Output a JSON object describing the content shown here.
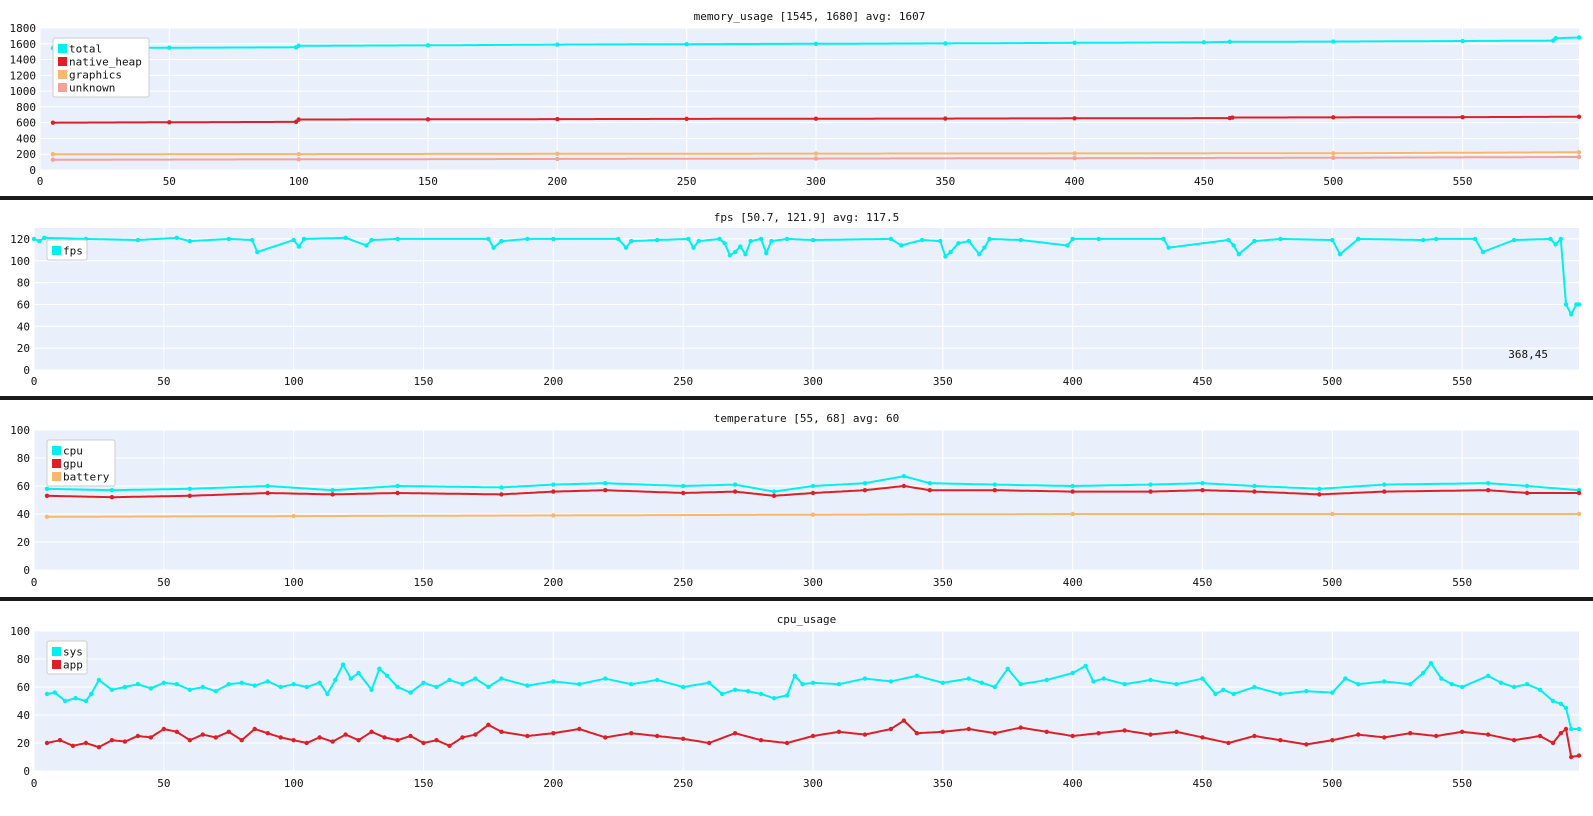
{
  "colors": {
    "background": "#ffffff",
    "plot_bg": "#eaf0fb",
    "grid": "#ffffff",
    "separator": "#1a1a1a",
    "axis_text": "#111111",
    "cyan": "#00f0f0",
    "red": "#dd1f26",
    "orange": "#f7b86e",
    "pink": "#f4a19a"
  },
  "charts": [
    {
      "title": "memory_usage [1545, 1680] avg: 1607",
      "annotation": ""
    },
    {
      "title": "fps [50.7, 121.9] avg: 117.5",
      "annotation": "368,45"
    },
    {
      "title": "temperature [55, 68] avg: 60",
      "annotation": ""
    },
    {
      "title": "cpu_usage",
      "annotation": ""
    }
  ],
  "chart_data": [
    {
      "type": "line",
      "title": "memory_usage [1545, 1680] avg: 1607",
      "xlim": [
        0,
        595
      ],
      "ylim": [
        0,
        1800
      ],
      "xticks": [
        0,
        50,
        100,
        150,
        200,
        250,
        300,
        350,
        400,
        450,
        500,
        550
      ],
      "yticks": [
        0,
        200,
        400,
        600,
        800,
        1000,
        1200,
        1400,
        1600,
        1800
      ],
      "grid": true,
      "legend": "top-left",
      "series": [
        {
          "name": "total",
          "color": "#00f0f0",
          "x": [
            5,
            50,
            99,
            100,
            150,
            200,
            250,
            300,
            350,
            400,
            450,
            460,
            500,
            550,
            585,
            586,
            595
          ],
          "y": [
            1545,
            1550,
            1555,
            1575,
            1580,
            1590,
            1595,
            1600,
            1605,
            1612,
            1618,
            1625,
            1628,
            1635,
            1640,
            1670,
            1680
          ]
        },
        {
          "name": "native_heap",
          "color": "#dd1f26",
          "x": [
            5,
            50,
            99,
            100,
            150,
            200,
            250,
            300,
            350,
            400,
            460,
            461,
            500,
            550,
            595
          ],
          "y": [
            600,
            605,
            610,
            640,
            642,
            645,
            648,
            650,
            652,
            655,
            658,
            665,
            667,
            670,
            675
          ]
        },
        {
          "name": "graphics",
          "color": "#f7b86e",
          "x": [
            5,
            100,
            200,
            300,
            400,
            500,
            595
          ],
          "y": [
            200,
            202,
            205,
            208,
            210,
            212,
            225
          ]
        },
        {
          "name": "unknown",
          "color": "#f4a19a",
          "x": [
            5,
            100,
            200,
            300,
            400,
            500,
            595
          ],
          "y": [
            130,
            135,
            140,
            145,
            150,
            155,
            165
          ]
        }
      ]
    },
    {
      "type": "line",
      "title": "fps [50.7, 121.9] avg: 117.5",
      "xlim": [
        0,
        595
      ],
      "ylim": [
        0,
        130
      ],
      "xticks": [
        0,
        50,
        100,
        150,
        200,
        250,
        300,
        350,
        400,
        450,
        500,
        550
      ],
      "yticks": [
        0,
        20,
        40,
        60,
        80,
        100,
        120
      ],
      "grid": true,
      "legend": "top-left",
      "series": [
        {
          "name": "fps",
          "color": "#00f0f0",
          "x": [
            0,
            2,
            4,
            20,
            40,
            55,
            60,
            75,
            84,
            86,
            100,
            102,
            104,
            120,
            128,
            130,
            140,
            175,
            177,
            180,
            190,
            200,
            225,
            228,
            230,
            240,
            252,
            254,
            256,
            264,
            266,
            268,
            270,
            272,
            274,
            276,
            280,
            282,
            284,
            290,
            300,
            330,
            334,
            342,
            349,
            351,
            353,
            356,
            360,
            364,
            366,
            368,
            380,
            398,
            400,
            410,
            435,
            437,
            460,
            462,
            464,
            470,
            480,
            500,
            503,
            510,
            535,
            540,
            555,
            558,
            570,
            584,
            586,
            588,
            590,
            592,
            594,
            595
          ],
          "y": [
            120,
            118,
            121,
            120,
            119,
            121,
            118,
            120,
            119,
            108,
            119,
            113,
            120,
            121,
            114,
            119,
            120,
            120,
            112,
            118,
            120,
            120,
            120,
            112,
            118,
            119,
            120,
            112,
            118,
            120,
            116,
            105,
            108,
            113,
            106,
            118,
            120,
            107,
            118,
            120,
            119,
            120,
            114,
            119,
            118,
            104,
            108,
            116,
            118,
            106,
            112,
            120,
            119,
            114,
            120,
            120,
            120,
            112,
            119,
            114,
            106,
            118,
            120,
            119,
            106,
            120,
            119,
            120,
            120,
            108,
            119,
            120,
            115,
            120,
            60,
            51,
            60,
            60
          ]
        }
      ]
    },
    {
      "type": "line",
      "title": "temperature [55, 68] avg: 60",
      "xlim": [
        0,
        595
      ],
      "ylim": [
        0,
        100
      ],
      "xticks": [
        0,
        50,
        100,
        150,
        200,
        250,
        300,
        350,
        400,
        450,
        500,
        550
      ],
      "yticks": [
        0,
        20,
        40,
        60,
        80,
        100
      ],
      "grid": true,
      "legend": "top-left",
      "series": [
        {
          "name": "cpu",
          "color": "#00f0f0",
          "x": [
            5,
            30,
            60,
            90,
            115,
            140,
            180,
            200,
            220,
            250,
            270,
            285,
            300,
            320,
            335,
            345,
            370,
            400,
            430,
            450,
            470,
            495,
            520,
            560,
            575,
            595
          ],
          "y": [
            58,
            57,
            58,
            60,
            57,
            60,
            59,
            61,
            62,
            60,
            61,
            56,
            60,
            62,
            67,
            62,
            61,
            60,
            61,
            62,
            60,
            58,
            61,
            62,
            60,
            57
          ]
        },
        {
          "name": "gpu",
          "color": "#dd1f26",
          "x": [
            5,
            30,
            60,
            90,
            115,
            140,
            180,
            200,
            220,
            250,
            270,
            285,
            300,
            320,
            335,
            345,
            370,
            400,
            430,
            450,
            470,
            495,
            520,
            560,
            575,
            595
          ],
          "y": [
            53,
            52,
            53,
            55,
            54,
            55,
            54,
            56,
            57,
            55,
            56,
            53,
            55,
            57,
            60,
            57,
            57,
            56,
            56,
            57,
            56,
            54,
            56,
            57,
            55,
            55
          ]
        },
        {
          "name": "battery",
          "color": "#f7b86e",
          "x": [
            5,
            100,
            200,
            300,
            400,
            500,
            595
          ],
          "y": [
            38,
            38.5,
            39,
            39.5,
            40,
            40,
            40
          ]
        }
      ]
    },
    {
      "type": "line",
      "title": "cpu_usage",
      "xlim": [
        0,
        595
      ],
      "ylim": [
        0,
        100
      ],
      "xticks": [
        0,
        50,
        100,
        150,
        200,
        250,
        300,
        350,
        400,
        450,
        500,
        550
      ],
      "yticks": [
        0,
        20,
        40,
        60,
        80,
        100
      ],
      "grid": true,
      "legend": "top-left",
      "series": [
        {
          "name": "sys",
          "color": "#00f0f0",
          "x": [
            5,
            8,
            12,
            16,
            20,
            22,
            25,
            30,
            35,
            40,
            45,
            50,
            55,
            60,
            65,
            70,
            75,
            80,
            85,
            90,
            95,
            100,
            105,
            110,
            113,
            116,
            119,
            122,
            125,
            130,
            133,
            136,
            140,
            145,
            150,
            155,
            160,
            165,
            170,
            175,
            180,
            190,
            200,
            210,
            220,
            230,
            240,
            250,
            260,
            265,
            270,
            275,
            280,
            285,
            290,
            293,
            296,
            300,
            310,
            320,
            330,
            340,
            350,
            360,
            365,
            370,
            375,
            380,
            390,
            400,
            405,
            408,
            412,
            420,
            430,
            440,
            450,
            455,
            458,
            462,
            470,
            480,
            490,
            500,
            505,
            510,
            520,
            530,
            535,
            538,
            542,
            546,
            550,
            560,
            565,
            570,
            575,
            580,
            585,
            588,
            590,
            592,
            595
          ],
          "y": [
            55,
            56,
            50,
            52,
            50,
            55,
            65,
            58,
            60,
            62,
            59,
            63,
            62,
            58,
            60,
            57,
            62,
            63,
            61,
            64,
            60,
            62,
            60,
            63,
            55,
            65,
            76,
            66,
            70,
            58,
            73,
            68,
            60,
            56,
            63,
            60,
            65,
            62,
            66,
            60,
            66,
            61,
            64,
            62,
            66,
            62,
            65,
            60,
            63,
            55,
            58,
            57,
            55,
            52,
            54,
            68,
            62,
            63,
            62,
            66,
            64,
            68,
            63,
            66,
            63,
            60,
            73,
            62,
            65,
            70,
            75,
            64,
            66,
            62,
            65,
            62,
            66,
            55,
            58,
            55,
            60,
            55,
            57,
            56,
            66,
            62,
            64,
            62,
            70,
            77,
            66,
            62,
            60,
            68,
            63,
            60,
            62,
            58,
            50,
            48,
            45,
            30,
            30
          ]
        },
        {
          "name": "app",
          "color": "#dd1f26",
          "x": [
            5,
            10,
            15,
            20,
            25,
            30,
            35,
            40,
            45,
            50,
            55,
            60,
            65,
            70,
            75,
            80,
            85,
            90,
            95,
            100,
            105,
            110,
            115,
            120,
            125,
            130,
            135,
            140,
            145,
            150,
            155,
            160,
            165,
            170,
            175,
            180,
            190,
            200,
            210,
            220,
            230,
            240,
            250,
            260,
            270,
            280,
            290,
            300,
            310,
            320,
            330,
            335,
            340,
            350,
            360,
            370,
            380,
            390,
            400,
            410,
            420,
            430,
            440,
            450,
            460,
            470,
            480,
            490,
            500,
            510,
            520,
            530,
            540,
            550,
            560,
            570,
            580,
            585,
            588,
            590,
            592,
            595
          ],
          "y": [
            20,
            22,
            18,
            20,
            17,
            22,
            21,
            25,
            24,
            30,
            28,
            22,
            26,
            24,
            28,
            22,
            30,
            27,
            24,
            22,
            20,
            24,
            21,
            26,
            22,
            28,
            24,
            22,
            25,
            20,
            22,
            18,
            24,
            26,
            33,
            28,
            25,
            27,
            30,
            24,
            27,
            25,
            23,
            20,
            27,
            22,
            20,
            25,
            28,
            26,
            30,
            36,
            27,
            28,
            30,
            27,
            31,
            28,
            25,
            27,
            29,
            26,
            28,
            24,
            20,
            25,
            22,
            19,
            22,
            26,
            24,
            27,
            25,
            28,
            26,
            22,
            25,
            20,
            27,
            30,
            10,
            11
          ]
        }
      ]
    }
  ]
}
